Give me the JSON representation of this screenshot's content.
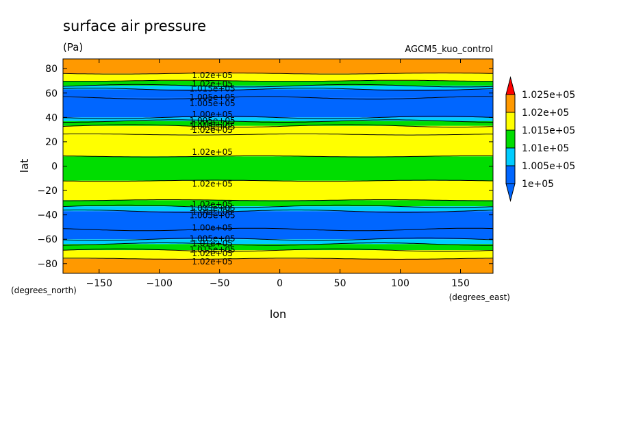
{
  "chart_data": {
    "type": "heatmap",
    "title": "surface air pressure",
    "units": "(Pa)",
    "dataset": "AGCM5_kuo_control",
    "xlabel": "lon",
    "ylabel": "lat",
    "x_unit_label": "(degrees_east)",
    "y_unit_label": "(degrees_north)",
    "xlim": [
      -180,
      177
    ],
    "ylim": [
      -88,
      88
    ],
    "x_ticks": [
      -150,
      -100,
      -50,
      0,
      50,
      100,
      150
    ],
    "y_ticks": [
      -80,
      -60,
      -40,
      -20,
      0,
      20,
      40,
      60,
      80
    ],
    "tick_labels_x": [
      "−150",
      "−100",
      "−50",
      "0",
      "50",
      "100",
      "150"
    ],
    "tick_labels_y": [
      "−80",
      "−60",
      "−40",
      "−20",
      "0",
      "20",
      "40",
      "60",
      "80"
    ],
    "colorbar": {
      "labels": [
        "1.025e+05",
        "1.02e+05",
        "1.015e+05",
        "1.01e+05",
        "1.005e+05",
        "1e+05"
      ],
      "levels": [
        100000,
        100500,
        101000,
        101500,
        102000,
        102500
      ],
      "colors": [
        "#0066ff",
        "#00ccff",
        "#00dd00",
        "#ffff00",
        "#ff9900"
      ],
      "under_color": "#0066ff",
      "over_color": "#ff0000"
    },
    "bands": [
      {
        "lat_from": 76,
        "lat_to": 88,
        "pressure_range": ">1.02e+05",
        "color": "#ff9900"
      },
      {
        "lat_from": 70,
        "lat_to": 76,
        "pressure_range": "1.015e+05-1.02e+05",
        "color": "#ffff00"
      },
      {
        "lat_from": 66,
        "lat_to": 70,
        "pressure_range": "1.01e+05-1.015e+05",
        "color": "#00dd00"
      },
      {
        "lat_from": 63,
        "lat_to": 66,
        "pressure_range": "1.005e+05-1.01e+05",
        "color": "#00ccff"
      },
      {
        "lat_from": 56,
        "lat_to": 63,
        "pressure_range": "1e+05-1.005e+05",
        "color": "#0066ff"
      },
      {
        "lat_from": 40,
        "lat_to": 56,
        "pressure_range": "<1e+05",
        "color": "#0066ff"
      },
      {
        "lat_from": 37,
        "lat_to": 40,
        "pressure_range": "1.005e+05-1.01e+05",
        "color": "#00ccff"
      },
      {
        "lat_from": 33,
        "lat_to": 37,
        "pressure_range": "1.01e+05-1.015e+05",
        "color": "#00dd00"
      },
      {
        "lat_from": 26,
        "lat_to": 33,
        "pressure_range": "1.015e+05-1.02e+05",
        "color": "#ffff00"
      },
      {
        "lat_from": 8,
        "lat_to": 26,
        "pressure_range": "1.015e+05-1.02e+05",
        "color": "#ffff00"
      },
      {
        "lat_from": -12,
        "lat_to": 8,
        "pressure_range": "1.01e+05-1.015e+05",
        "color": "#00dd00"
      },
      {
        "lat_from": -28,
        "lat_to": -12,
        "pressure_range": "1.015e+05-1.02e+05",
        "color": "#ffff00"
      },
      {
        "lat_from": -33,
        "lat_to": -28,
        "pressure_range": "1.01e+05-1.015e+05",
        "color": "#00dd00"
      },
      {
        "lat_from": -37,
        "lat_to": -33,
        "pressure_range": "1.005e+05-1.01e+05",
        "color": "#00ccff"
      },
      {
        "lat_from": -52,
        "lat_to": -37,
        "pressure_range": "<1e+05",
        "color": "#0066ff"
      },
      {
        "lat_from": -60,
        "lat_to": -52,
        "pressure_range": "1e+05-1.005e+05",
        "color": "#0066ff"
      },
      {
        "lat_from": -64,
        "lat_to": -60,
        "pressure_range": "1.005e+05-1.01e+05",
        "color": "#00ccff"
      },
      {
        "lat_from": -69,
        "lat_to": -64,
        "pressure_range": "1.01e+05-1.015e+05",
        "color": "#00dd00"
      },
      {
        "lat_from": -76,
        "lat_to": -69,
        "pressure_range": "1.015e+05-1.02e+05",
        "color": "#ffff00"
      },
      {
        "lat_from": -88,
        "lat_to": -76,
        "pressure_range": ">1.02e+05",
        "color": "#ff9900"
      }
    ],
    "contour_labels": [
      {
        "text": "1.02e+05",
        "lon": -56,
        "lat": 75
      },
      {
        "text": "1.02e+05",
        "lon": -56,
        "lat": 68
      },
      {
        "text": "1.015e+05",
        "lon": -56,
        "lat": 64
      },
      {
        "text": "1.005e+05",
        "lon": -56,
        "lat": 57
      },
      {
        "text": "1.005e+05",
        "lon": -56,
        "lat": 52
      },
      {
        "text": "1.00e+05",
        "lon": -56,
        "lat": 43
      },
      {
        "text": "1.005e+05",
        "lon": -56,
        "lat": 38
      },
      {
        "text": "1.01e+05",
        "lon": -56,
        "lat": 35
      },
      {
        "text": "1.015e+05",
        "lon": -56,
        "lat": 33
      },
      {
        "text": "1.02e+05",
        "lon": -56,
        "lat": 30
      },
      {
        "text": "1.02e+05",
        "lon": -56,
        "lat": 12
      },
      {
        "text": "1.02e+05",
        "lon": -56,
        "lat": -14
      },
      {
        "text": "1.02e+05",
        "lon": -56,
        "lat": -31
      },
      {
        "text": "1.015e+05",
        "lon": -56,
        "lat": -34
      },
      {
        "text": "1.01e+05",
        "lon": -56,
        "lat": -37
      },
      {
        "text": "1.005e+05",
        "lon": -56,
        "lat": -40
      },
      {
        "text": "1.00e+05",
        "lon": -56,
        "lat": -50
      },
      {
        "text": "1.005e+05",
        "lon": -56,
        "lat": -59
      },
      {
        "text": "1.01e+05",
        "lon": -56,
        "lat": -63
      },
      {
        "text": "1.015e+05",
        "lon": -56,
        "lat": -68
      },
      {
        "text": "1.02e+05",
        "lon": -56,
        "lat": -71
      },
      {
        "text": "1.02e+05",
        "lon": -56,
        "lat": -78
      }
    ],
    "grid": false,
    "legend_placement": "right"
  }
}
